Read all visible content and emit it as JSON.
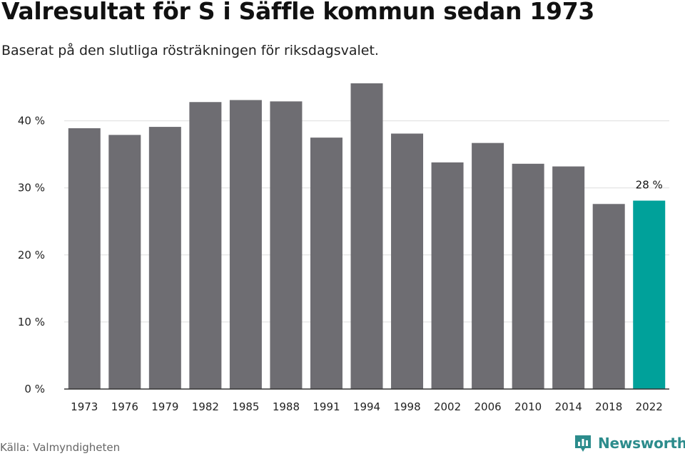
{
  "title": "Valresultat för S i Säffle kommun sedan 1973",
  "subtitle": "Baserat på den slutliga rösträkningen för riksdagsvalet.",
  "source": "Källa: Valmyndigheten",
  "brand": {
    "name": "Newsworthy",
    "icon": "newsworthy-logo-icon"
  },
  "colors": {
    "bar": "#6e6d72",
    "highlight": "#00a19a",
    "grid": "#dddddd",
    "axis": "#333333",
    "brand": "#2c8c8c"
  },
  "chart_data": {
    "type": "bar",
    "categories": [
      "1973",
      "1976",
      "1979",
      "1982",
      "1985",
      "1988",
      "1991",
      "1994",
      "1998",
      "2002",
      "2006",
      "2010",
      "2014",
      "2018",
      "2022"
    ],
    "values": [
      38.9,
      37.9,
      39.1,
      42.8,
      43.1,
      42.9,
      37.5,
      45.6,
      38.1,
      33.8,
      36.7,
      33.6,
      33.2,
      27.6,
      28.1
    ],
    "highlight_index": 14,
    "annotation": {
      "index": 14,
      "text": "28 %"
    },
    "yticks": [
      0,
      10,
      20,
      30,
      40
    ],
    "ytick_labels": [
      "0 %",
      "10 %",
      "20 %",
      "30 %",
      "40 %"
    ],
    "ylim": [
      0,
      48
    ],
    "title": "Valresultat för S i Säffle kommun sedan 1973",
    "xlabel": "",
    "ylabel": "",
    "grid": true
  }
}
